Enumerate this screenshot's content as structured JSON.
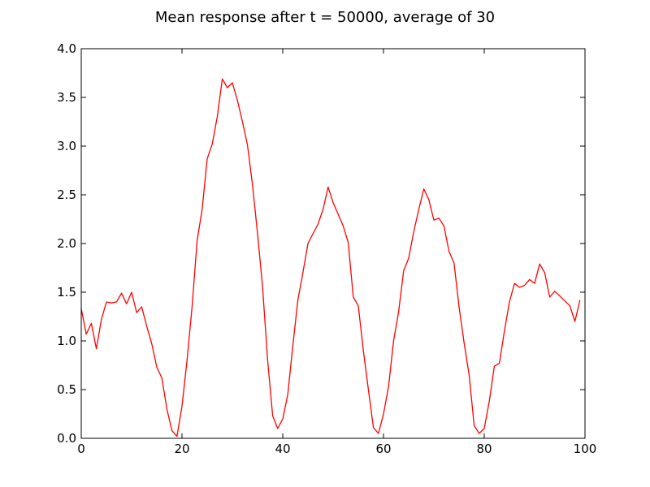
{
  "chart_data": {
    "type": "line",
    "title": "Mean response after t = 50000, average of 30",
    "xlabel": "",
    "ylabel": "",
    "xlim": [
      0,
      100
    ],
    "ylim": [
      0.0,
      4.0
    ],
    "x_ticks": [
      0,
      20,
      40,
      60,
      80,
      100
    ],
    "y_ticks": [
      0.0,
      0.5,
      1.0,
      1.5,
      2.0,
      2.5,
      3.0,
      3.5,
      4.0
    ],
    "x_tick_labels": [
      "0",
      "20",
      "40",
      "60",
      "80",
      "100"
    ],
    "y_tick_labels": [
      "0.0",
      "0.5",
      "1.0",
      "1.5",
      "2.0",
      "2.5",
      "3.0",
      "3.5",
      "4.0"
    ],
    "grid": false,
    "series": [
      {
        "color": "#ff0000",
        "x": [
          0,
          1,
          2,
          3,
          4,
          5,
          6,
          7,
          8,
          9,
          10,
          11,
          12,
          13,
          14,
          15,
          16,
          17,
          18,
          19,
          20,
          21,
          22,
          23,
          24,
          25,
          26,
          27,
          28,
          29,
          30,
          31,
          32,
          33,
          34,
          35,
          36,
          37,
          38,
          39,
          40,
          41,
          42,
          43,
          44,
          45,
          46,
          47,
          48,
          49,
          50,
          51,
          52,
          53,
          54,
          55,
          56,
          57,
          58,
          59,
          60,
          61,
          62,
          63,
          64,
          65,
          66,
          67,
          68,
          69,
          70,
          71,
          72,
          73,
          74,
          75,
          76,
          77,
          78,
          79,
          80,
          81,
          82,
          83,
          84,
          85,
          86,
          87,
          88,
          89,
          90,
          91,
          92,
          93,
          94,
          95,
          96,
          97,
          98,
          99
        ],
        "values": [
          1.33,
          1.07,
          1.18,
          0.92,
          1.22,
          1.4,
          1.39,
          1.4,
          1.49,
          1.38,
          1.5,
          1.29,
          1.35,
          1.15,
          0.97,
          0.73,
          0.62,
          0.3,
          0.08,
          0.02,
          0.33,
          0.8,
          1.35,
          2.03,
          2.35,
          2.87,
          3.02,
          3.3,
          3.69,
          3.6,
          3.65,
          3.47,
          3.25,
          3.01,
          2.6,
          2.1,
          1.55,
          0.8,
          0.23,
          0.1,
          0.2,
          0.45,
          0.95,
          1.42,
          1.7,
          2.0,
          2.1,
          2.2,
          2.35,
          2.58,
          2.42,
          2.3,
          2.18,
          2.01,
          1.45,
          1.36,
          0.9,
          0.5,
          0.11,
          0.05,
          0.25,
          0.53,
          1.0,
          1.3,
          1.72,
          1.85,
          2.12,
          2.35,
          2.56,
          2.45,
          2.24,
          2.26,
          2.18,
          1.92,
          1.8,
          1.35,
          0.98,
          0.65,
          0.13,
          0.05,
          0.1,
          0.38,
          0.74,
          0.77,
          1.1,
          1.4,
          1.59,
          1.55,
          1.57,
          1.63,
          1.59,
          1.79,
          1.7,
          1.45,
          1.51,
          1.46,
          1.41,
          1.36,
          1.2,
          1.42
        ]
      }
    ]
  }
}
